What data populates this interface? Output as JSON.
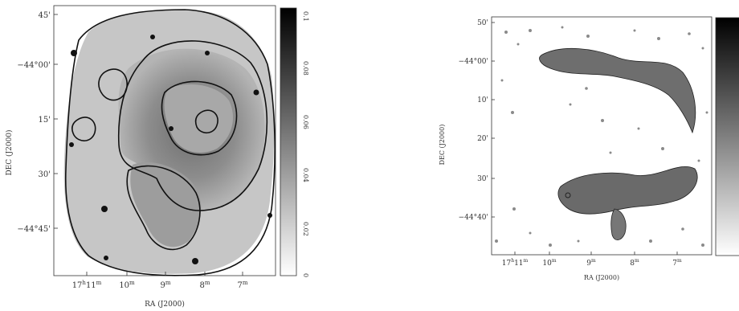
{
  "left_panel": {
    "xlabel": "RA (J2000)",
    "ylabel": "DEC (J2000)",
    "x_ticks": [
      {
        "main": "17",
        "sup1": "h",
        "mid": "11",
        "sup2": "m"
      },
      {
        "main": "10",
        "sup1": "m"
      },
      {
        "main": "9",
        "sup1": "m"
      },
      {
        "main": "8",
        "sup1": "m"
      },
      {
        "main": "7",
        "sup1": "m"
      }
    ],
    "y_ticks": [
      "45'",
      "−44°00'",
      "15'",
      "30'",
      "−44°45'"
    ],
    "colorbar_ticks": [
      "0.1",
      "0.08",
      "0.06",
      "0.04",
      "0.02",
      "0"
    ]
  },
  "right_panel": {
    "xlabel": "RA (J2000)",
    "ylabel": "DEC (J2000)",
    "x_ticks": [
      {
        "main": "17",
        "sup1": "h",
        "mid": "11",
        "sup2": "m"
      },
      {
        "main": "10",
        "sup1": "m"
      },
      {
        "main": "9",
        "sup1": "m"
      },
      {
        "main": "8",
        "sup1": "m"
      },
      {
        "main": "7",
        "sup1": "m"
      }
    ],
    "y_ticks": [
      "50'",
      "−44°00'",
      "10'",
      "20'",
      "30'",
      "−44°40'"
    ]
  }
}
